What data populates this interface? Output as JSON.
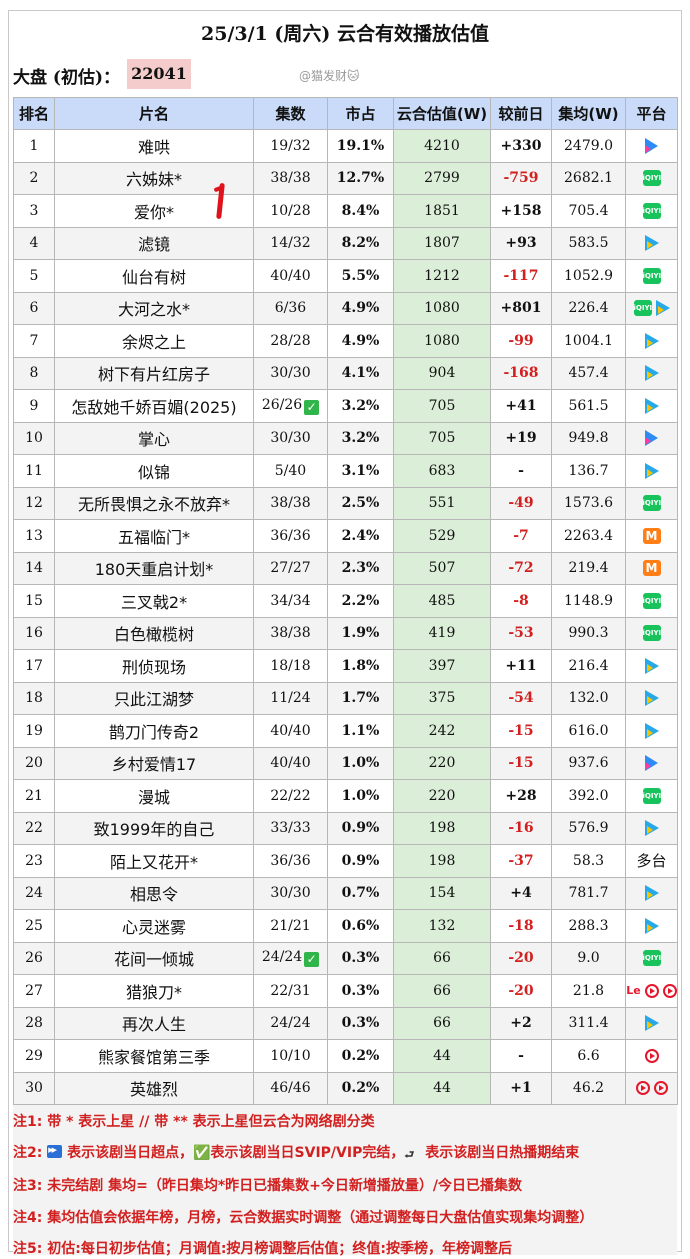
{
  "title": "25/3/1 (周六) 云合有效播放估值",
  "dapan_label": "大盘 (初估)：",
  "dapan_value": "22041",
  "watermark": "@猫发财🐱",
  "headers": [
    "排名",
    "片名",
    "集数",
    "市占",
    "云合估值(W)",
    "较前日",
    "集均(W)",
    "平台"
  ],
  "rows": [
    {
      "rank": "1",
      "name": "难哄",
      "eps": "19/32",
      "check": false,
      "share": "19.1%",
      "est": "4210",
      "chg": "+330",
      "dir": "up",
      "avg": "2479.0",
      "platform": [
        "youku"
      ]
    },
    {
      "rank": "2",
      "name": "六姊妹*",
      "eps": "38/38",
      "check": false,
      "share": "12.7%",
      "est": "2799",
      "chg": "-759",
      "dir": "down",
      "avg": "2682.1",
      "platform": [
        "iqiyi"
      ]
    },
    {
      "rank": "3",
      "name": "爱你*",
      "eps": "10/28",
      "check": false,
      "share": "8.4%",
      "est": "1851",
      "chg": "+158",
      "dir": "up",
      "avg": "705.4",
      "platform": [
        "iqiyi"
      ]
    },
    {
      "rank": "4",
      "name": "滤镜",
      "eps": "14/32",
      "check": false,
      "share": "8.2%",
      "est": "1807",
      "chg": "+93",
      "dir": "up",
      "avg": "583.5",
      "platform": [
        "tencent"
      ]
    },
    {
      "rank": "5",
      "name": "仙台有树",
      "eps": "40/40",
      "check": false,
      "share": "5.5%",
      "est": "1212",
      "chg": "-117",
      "dir": "down",
      "avg": "1052.9",
      "platform": [
        "iqiyi"
      ]
    },
    {
      "rank": "6",
      "name": "大河之水*",
      "eps": "6/36",
      "check": false,
      "share": "4.9%",
      "est": "1080",
      "chg": "+801",
      "dir": "up",
      "avg": "226.4",
      "platform": [
        "iqiyi",
        "tencent"
      ]
    },
    {
      "rank": "7",
      "name": "余烬之上",
      "eps": "28/28",
      "check": false,
      "share": "4.9%",
      "est": "1080",
      "chg": "-99",
      "dir": "down",
      "avg": "1004.1",
      "platform": [
        "tencent"
      ]
    },
    {
      "rank": "8",
      "name": "树下有片红房子",
      "eps": "30/30",
      "check": false,
      "share": "4.1%",
      "est": "904",
      "chg": "-168",
      "dir": "down",
      "avg": "457.4",
      "platform": [
        "tencent"
      ]
    },
    {
      "rank": "9",
      "name": "怎敌她千娇百媚(2025)",
      "eps": "26/26",
      "check": true,
      "share": "3.2%",
      "est": "705",
      "chg": "+41",
      "dir": "up",
      "avg": "561.5",
      "platform": [
        "tencent"
      ]
    },
    {
      "rank": "10",
      "name": "掌心",
      "eps": "30/30",
      "check": false,
      "share": "3.2%",
      "est": "705",
      "chg": "+19",
      "dir": "up",
      "avg": "949.8",
      "platform": [
        "youku"
      ]
    },
    {
      "rank": "11",
      "name": "似锦",
      "eps": "5/40",
      "check": false,
      "share": "3.1%",
      "est": "683",
      "chg": "-",
      "dir": "up",
      "avg": "136.7",
      "platform": [
        "tencent"
      ]
    },
    {
      "rank": "12",
      "name": "无所畏惧之永不放弃*",
      "eps": "38/38",
      "check": false,
      "share": "2.5%",
      "est": "551",
      "chg": "-49",
      "dir": "down",
      "avg": "1573.6",
      "platform": [
        "iqiyi"
      ]
    },
    {
      "rank": "13",
      "name": "五福临门*",
      "eps": "36/36",
      "check": false,
      "share": "2.4%",
      "est": "529",
      "chg": "-7",
      "dir": "down",
      "avg": "2263.4",
      "platform": [
        "mango"
      ]
    },
    {
      "rank": "14",
      "name": "180天重启计划*",
      "eps": "27/27",
      "check": false,
      "share": "2.3%",
      "est": "507",
      "chg": "-72",
      "dir": "down",
      "avg": "219.4",
      "platform": [
        "mango"
      ]
    },
    {
      "rank": "15",
      "name": "三叉戟2*",
      "eps": "34/34",
      "check": false,
      "share": "2.2%",
      "est": "485",
      "chg": "-8",
      "dir": "down",
      "avg": "1148.9",
      "platform": [
        "iqiyi"
      ]
    },
    {
      "rank": "16",
      "name": "白色橄榄树",
      "eps": "38/38",
      "check": false,
      "share": "1.9%",
      "est": "419",
      "chg": "-53",
      "dir": "down",
      "avg": "990.3",
      "platform": [
        "iqiyi"
      ]
    },
    {
      "rank": "17",
      "name": "刑侦现场",
      "eps": "18/18",
      "check": false,
      "share": "1.8%",
      "est": "397",
      "chg": "+11",
      "dir": "up",
      "avg": "216.4",
      "platform": [
        "tencent"
      ]
    },
    {
      "rank": "18",
      "name": "只此江湖梦",
      "eps": "11/24",
      "check": false,
      "share": "1.7%",
      "est": "375",
      "chg": "-54",
      "dir": "down",
      "avg": "132.0",
      "platform": [
        "tencent"
      ]
    },
    {
      "rank": "19",
      "name": "鹊刀门传奇2",
      "eps": "40/40",
      "check": false,
      "share": "1.1%",
      "est": "242",
      "chg": "-15",
      "dir": "down",
      "avg": "616.0",
      "platform": [
        "tencent"
      ]
    },
    {
      "rank": "20",
      "name": "乡村爱情17",
      "eps": "40/40",
      "check": false,
      "share": "1.0%",
      "est": "220",
      "chg": "-15",
      "dir": "down",
      "avg": "937.6",
      "platform": [
        "youku"
      ]
    },
    {
      "rank": "21",
      "name": "漫城",
      "eps": "22/22",
      "check": false,
      "share": "1.0%",
      "est": "220",
      "chg": "+28",
      "dir": "up",
      "avg": "392.0",
      "platform": [
        "iqiyi"
      ]
    },
    {
      "rank": "22",
      "name": "致1999年的自己",
      "eps": "33/33",
      "check": false,
      "share": "0.9%",
      "est": "198",
      "chg": "-16",
      "dir": "down",
      "avg": "576.9",
      "platform": [
        "tencent"
      ]
    },
    {
      "rank": "23",
      "name": "陌上又花开*",
      "eps": "36/36",
      "check": false,
      "share": "0.9%",
      "est": "198",
      "chg": "-37",
      "dir": "down",
      "avg": "58.3",
      "platform": [
        "text:多台"
      ]
    },
    {
      "rank": "24",
      "name": "相思令",
      "eps": "30/30",
      "check": false,
      "share": "0.7%",
      "est": "154",
      "chg": "+4",
      "dir": "up",
      "avg": "781.7",
      "platform": [
        "tencent"
      ]
    },
    {
      "rank": "25",
      "name": "心灵迷雾",
      "eps": "21/21",
      "check": false,
      "share": "0.6%",
      "est": "132",
      "chg": "-18",
      "dir": "down",
      "avg": "288.3",
      "platform": [
        "tencent"
      ]
    },
    {
      "rank": "26",
      "name": "花间一倾城",
      "eps": "24/24",
      "check": true,
      "share": "0.3%",
      "est": "66",
      "chg": "-20",
      "dir": "down",
      "avg": "9.0",
      "platform": [
        "iqiyi"
      ]
    },
    {
      "rank": "27",
      "name": "猎狼刀*",
      "eps": "22/31",
      "check": false,
      "share": "0.3%",
      "est": "66",
      "chg": "-20",
      "dir": "down",
      "avg": "21.8",
      "platform": [
        "le",
        "sohu",
        "sohu"
      ]
    },
    {
      "rank": "28",
      "name": "再次人生",
      "eps": "24/24",
      "check": false,
      "share": "0.3%",
      "est": "66",
      "chg": "+2",
      "dir": "up",
      "avg": "311.4",
      "platform": [
        "tencent"
      ]
    },
    {
      "rank": "29",
      "name": "熊家餐馆第三季",
      "eps": "10/10",
      "check": false,
      "share": "0.2%",
      "est": "44",
      "chg": "-",
      "dir": "up",
      "avg": "6.6",
      "platform": [
        "sohu"
      ]
    },
    {
      "rank": "30",
      "name": "英雄烈",
      "eps": "46/46",
      "check": false,
      "share": "0.2%",
      "est": "44",
      "chg": "+1",
      "dir": "up",
      "avg": "46.2",
      "platform": [
        "sohu",
        "sohu"
      ]
    }
  ],
  "notes": [
    {
      "tag": "注1:",
      "text": " 带 * 表示上星 // 带 ** 表示上星但云合为网络剧分类"
    },
    {
      "tag": "注2:",
      "parts": [
        " 表示该剧当日超点，",
        "✅表示该剧当日SVIP/VIP完结，",
        " 表示该剧当日热播期结束"
      ]
    },
    {
      "tag": "注3:",
      "text": " 未完结剧 集均=（昨日集均*昨日已播集数+今日新增播放量）/今日已播集数"
    },
    {
      "tag": "注4:",
      "text": " 集均估值会依据年榜，月榜，云合数据实时调整（通过调整每日大盘估值实现集均调整）"
    },
    {
      "tag": "注5:",
      "text": " 初估:每日初步估值；月调值:按月榜调整后估值；终值:按季榜，年榜调整后"
    }
  ],
  "platform_colors": {
    "tencent": "#26a8ea",
    "youku": "#2c8bf5",
    "iqiyi": "#19c35c",
    "mango": "#ff7e15",
    "sohu": "#e5172d"
  }
}
